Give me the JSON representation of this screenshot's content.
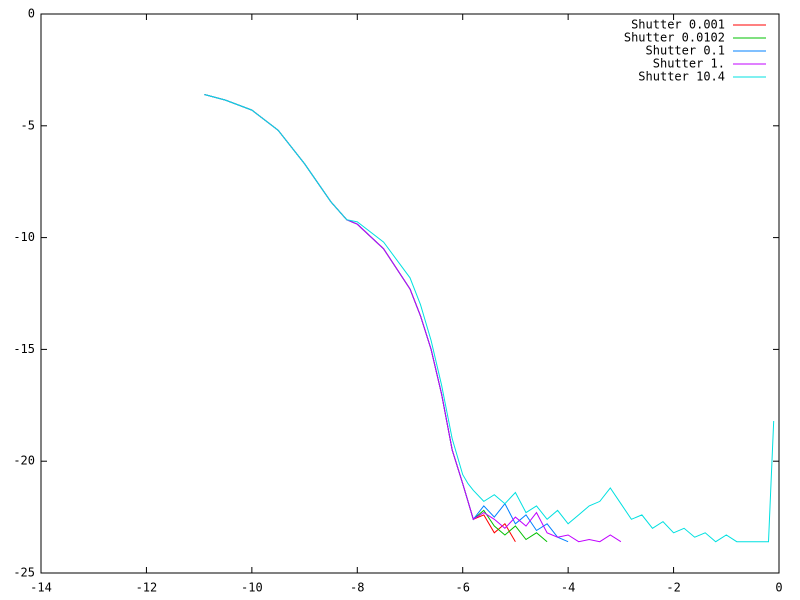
{
  "chart_data": {
    "type": "line",
    "x": [
      -10.9,
      -10.5,
      -10,
      -9.5,
      -9,
      -8.5,
      -8.2,
      -8,
      -7.5,
      -7,
      -6.8,
      -6.6,
      -6.4,
      -6.2,
      -6.0,
      -5.9,
      -5.8,
      -5.6,
      -5.4,
      -5.2,
      -5.0,
      -4.8,
      -4.6,
      -4.4,
      -4.2,
      -4.0,
      -3.8,
      -3.6,
      -3.4,
      -3.2,
      -3.0,
      -2.8,
      -2.6,
      -2.4,
      -2.2,
      -2.0,
      -1.8,
      -1.6,
      -1.4,
      -1.2,
      -1.0,
      -0.8,
      -0.6,
      -0.4,
      -0.2,
      -0.1
    ],
    "series": [
      {
        "name": "Shutter 0.001",
        "color": "#ff0000",
        "values": [
          -3.6,
          -3.85,
          -4.3,
          -5.2,
          -6.7,
          -8.4,
          -9.2,
          -9.4,
          -10.5,
          -12.3,
          -13.5,
          -15,
          -17,
          -19.5,
          -21,
          -21.8,
          -22.6,
          -22.4,
          -23.2,
          -22.8,
          -23.6,
          null,
          null,
          null,
          null,
          null,
          null,
          null,
          null,
          null,
          null,
          null,
          null,
          null,
          null,
          null,
          null,
          null,
          null,
          null,
          null,
          null,
          null,
          null,
          null,
          null
        ]
      },
      {
        "name": "Shutter 0.0102",
        "color": "#00c000",
        "values": [
          -3.6,
          -3.85,
          -4.3,
          -5.2,
          -6.7,
          -8.4,
          -9.2,
          -9.4,
          -10.5,
          -12.3,
          -13.5,
          -15,
          -17,
          -19.5,
          -21,
          -21.8,
          -22.6,
          -22.2,
          -22.9,
          -23.3,
          -22.9,
          -23.5,
          -23.2,
          -23.6,
          null,
          null,
          null,
          null,
          null,
          null,
          null,
          null,
          null,
          null,
          null,
          null,
          null,
          null,
          null,
          null,
          null,
          null,
          null,
          null,
          null,
          null
        ]
      },
      {
        "name": "Shutter 0.1",
        "color": "#0080ff",
        "values": [
          -3.6,
          -3.85,
          -4.3,
          -5.2,
          -6.7,
          -8.4,
          -9.2,
          -9.4,
          -10.5,
          -12.3,
          -13.5,
          -15,
          -17,
          -19.5,
          -21,
          -21.8,
          -22.6,
          -22,
          -22.5,
          -21.9,
          -22.8,
          -22.4,
          -23.1,
          -22.8,
          -23.4,
          -23.6,
          null,
          null,
          null,
          null,
          null,
          null,
          null,
          null,
          null,
          null,
          null,
          null,
          null,
          null,
          null,
          null,
          null,
          null,
          null,
          null
        ]
      },
      {
        "name": "Shutter 1.",
        "color": "#c000ff",
        "values": [
          -3.6,
          -3.85,
          -4.3,
          -5.2,
          -6.7,
          -8.4,
          -9.2,
          -9.4,
          -10.5,
          -12.3,
          -13.5,
          -15,
          -17,
          -19.5,
          -21,
          -21.8,
          -22.6,
          -22.3,
          -22.6,
          -23.0,
          -22.5,
          -22.9,
          -22.3,
          -23.2,
          -23.4,
          -23.3,
          -23.6,
          -23.5,
          -23.6,
          -23.3,
          -23.6,
          null,
          null,
          null,
          null,
          null,
          null,
          null,
          null,
          null,
          null,
          null,
          null,
          null,
          null,
          null
        ]
      },
      {
        "name": "Shutter 10.4",
        "color": "#00e0e0",
        "values": [
          -3.6,
          -3.85,
          -4.3,
          -5.2,
          -6.7,
          -8.4,
          -9.2,
          -9.3,
          -10.2,
          -11.8,
          -13,
          -14.6,
          -16.6,
          -19,
          -20.6,
          -21,
          -21.3,
          -21.8,
          -21.5,
          -21.9,
          -21.4,
          -22.3,
          -22,
          -22.6,
          -22.2,
          -22.8,
          -22.4,
          -22,
          -21.8,
          -21.2,
          -21.9,
          -22.6,
          -22.4,
          -23,
          -22.7,
          -23.2,
          -23,
          -23.4,
          -23.2,
          -23.6,
          -23.3,
          -23.6,
          -23.6,
          -23.6,
          -23.6,
          -18.2
        ]
      }
    ],
    "xlim": [
      -14,
      0
    ],
    "xticks": [
      -14,
      -12,
      -10,
      -8,
      -6,
      -4,
      -2,
      0
    ],
    "ylim": [
      -25,
      0
    ],
    "yticks": [
      0,
      -5,
      -10,
      -15,
      -20,
      -25
    ],
    "legend": "top right"
  }
}
